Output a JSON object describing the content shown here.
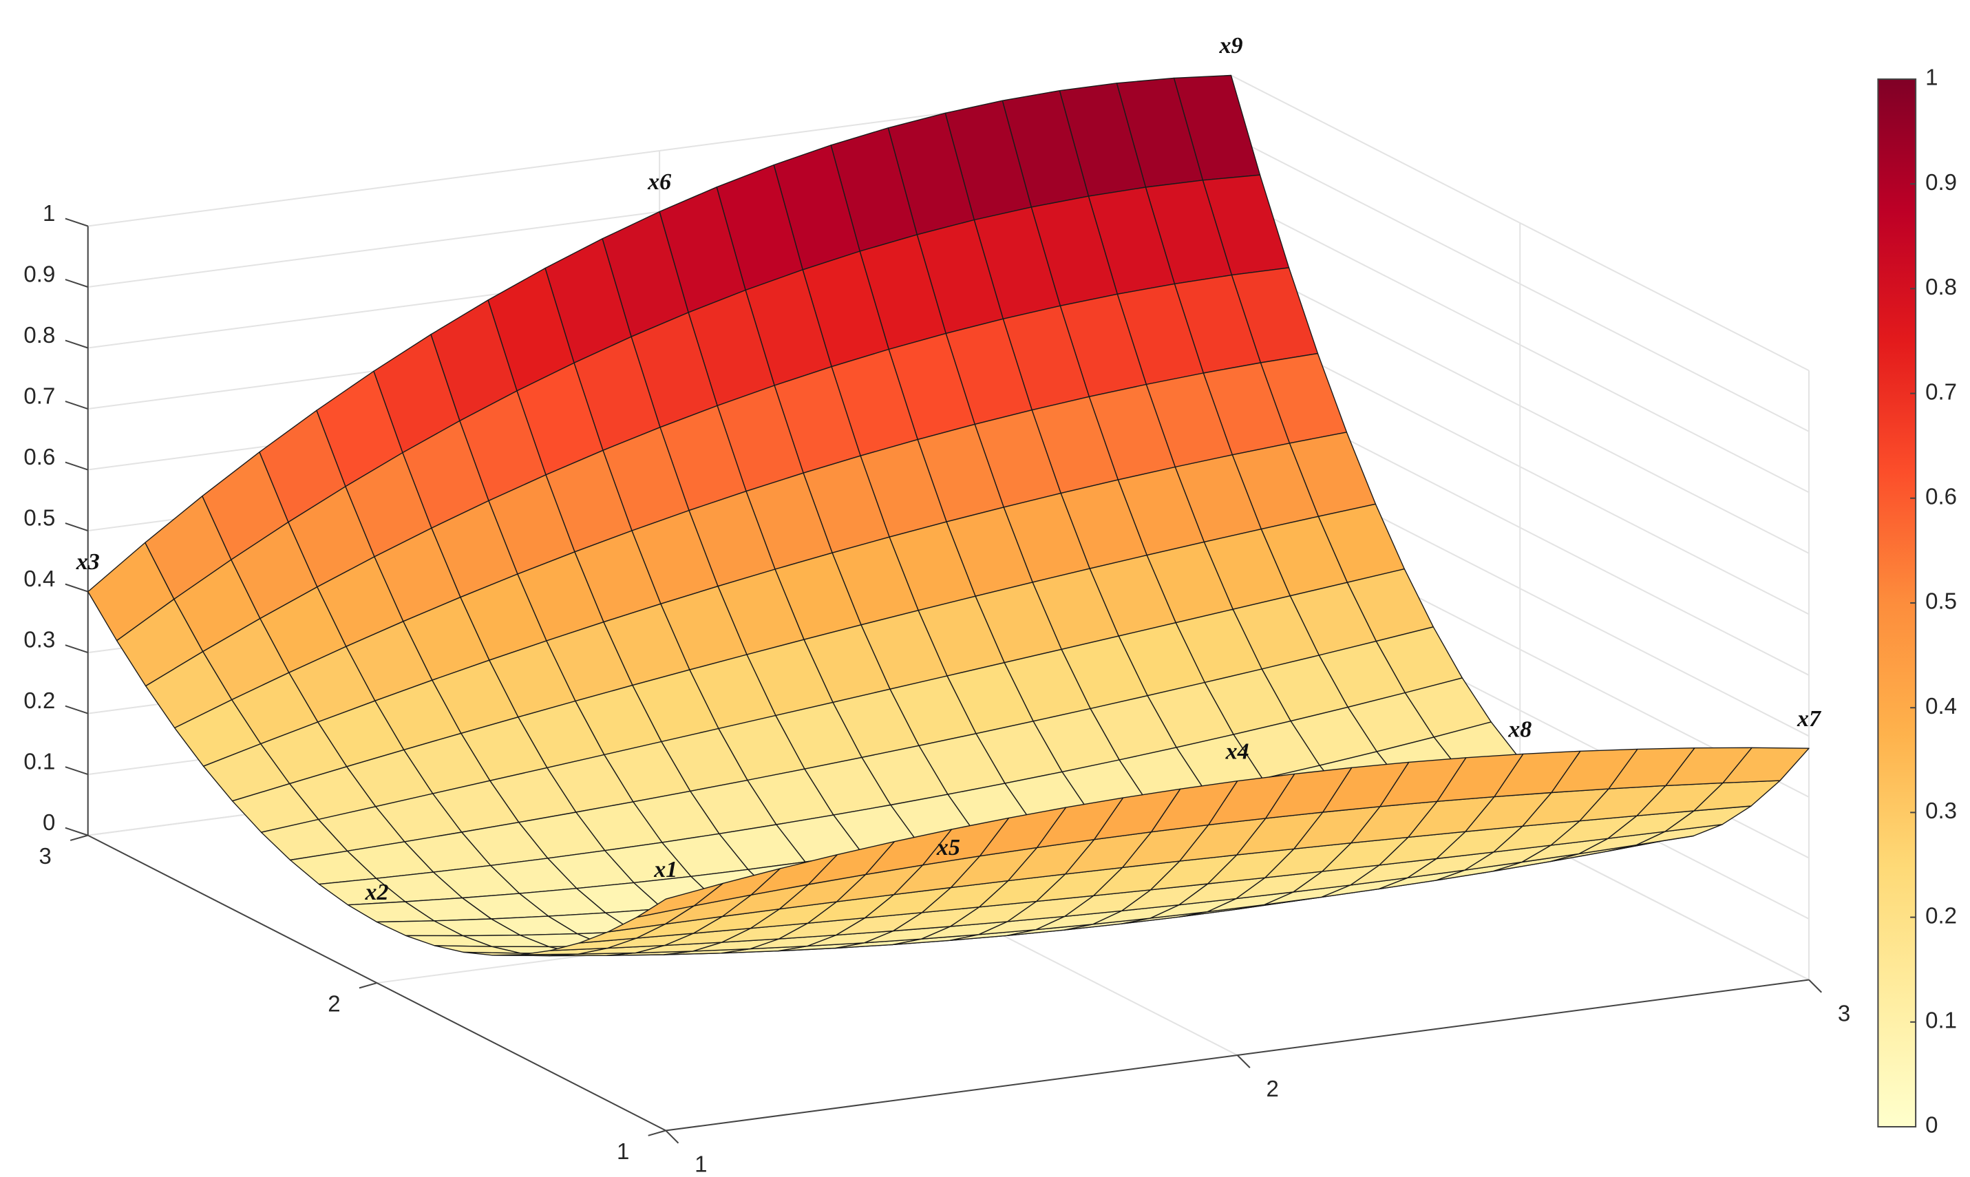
{
  "chart_data": {
    "type": "surface",
    "x": [
      1,
      2,
      3
    ],
    "y": [
      1,
      2,
      3
    ],
    "z": [
      [
        0.38,
        0.1,
        0.4
      ],
      [
        0.45,
        0.05,
        0.9
      ],
      [
        0.38,
        0.12,
        1
      ]
    ],
    "point_labels": [
      [
        "x1",
        "x2",
        "x3"
      ],
      [
        "x4",
        "x5",
        "x6"
      ],
      [
        "x7",
        "x8",
        "x9"
      ]
    ],
    "xlim": [
      1,
      3
    ],
    "xticks": [
      1,
      2,
      3
    ],
    "ylim": [
      1,
      3
    ],
    "yticks": [
      1,
      2,
      3
    ],
    "zlim": [
      0,
      1
    ],
    "zticks": [
      0,
      0.1,
      0.2,
      0.3,
      0.4,
      0.5,
      0.6,
      0.7,
      0.8,
      0.9,
      1
    ],
    "grid": true,
    "colormap": [
      "#ffffcc",
      "#ffeda0",
      "#fed976",
      "#feb24c",
      "#fd8d3c",
      "#fc4e2a",
      "#e31a1c",
      "#bd0026",
      "#800026"
    ],
    "clim": [
      0,
      1
    ],
    "cticks": [
      0,
      0.1,
      0.2,
      0.3,
      0.4,
      0.5,
      0.6,
      0.7,
      0.8,
      0.9,
      1
    ],
    "colorbar": true
  }
}
